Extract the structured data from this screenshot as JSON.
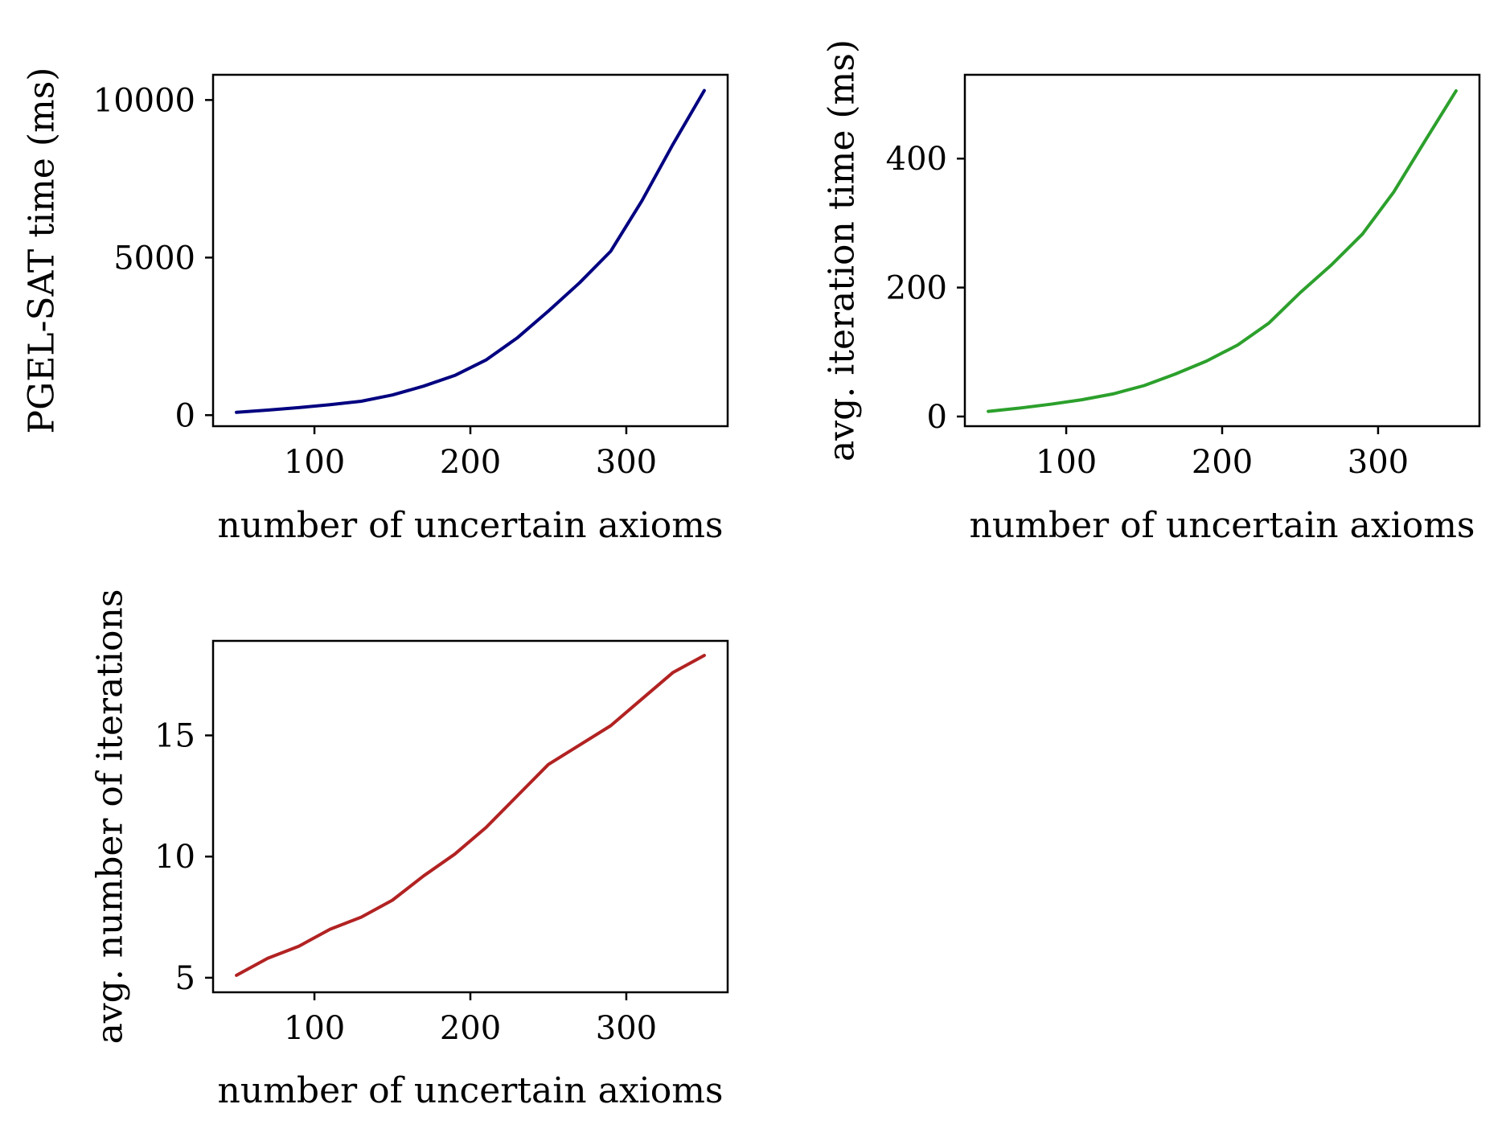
{
  "chart_data": [
    {
      "type": "line",
      "xlabel": "number of uncertain axioms",
      "ylabel": "PGEL-SAT time (ms)",
      "xlim": [
        35,
        365
      ],
      "ylim": [
        -350,
        10800
      ],
      "xticks": [
        100,
        200,
        300
      ],
      "yticks": [
        0,
        5000,
        10000
      ],
      "grid": false,
      "color": "#000080",
      "series": [
        {
          "x": [
            50,
            70,
            90,
            110,
            130,
            150,
            170,
            190,
            210,
            230,
            250,
            270,
            290,
            310,
            330,
            350
          ],
          "y": [
            90,
            160,
            240,
            330,
            440,
            640,
            920,
            1260,
            1750,
            2450,
            3300,
            4200,
            5200,
            6800,
            8600,
            10300
          ]
        }
      ]
    },
    {
      "type": "line",
      "xlabel": "number of uncertain axioms",
      "ylabel": "avg. iteration time (ms)",
      "xlim": [
        35,
        365
      ],
      "ylim": [
        -15,
        530
      ],
      "xticks": [
        100,
        200,
        300
      ],
      "yticks": [
        0,
        200,
        400
      ],
      "grid": false,
      "color": "#2ca02c",
      "series": [
        {
          "x": [
            50,
            70,
            90,
            110,
            130,
            150,
            170,
            190,
            210,
            230,
            250,
            270,
            290,
            310,
            330,
            350
          ],
          "y": [
            8,
            13,
            19,
            26,
            35,
            48,
            66,
            86,
            111,
            145,
            192,
            235,
            283,
            348,
            427,
            505
          ]
        }
      ]
    },
    {
      "type": "line",
      "xlabel": "number of uncertain axioms",
      "ylabel": "avg. number of iterations",
      "xlim": [
        35,
        365
      ],
      "ylim": [
        4.4,
        18.9
      ],
      "xticks": [
        100,
        200,
        300
      ],
      "yticks": [
        5,
        10,
        15
      ],
      "grid": false,
      "color": "#b22222",
      "series": [
        {
          "x": [
            50,
            70,
            90,
            110,
            130,
            150,
            170,
            190,
            210,
            230,
            250,
            270,
            290,
            310,
            330,
            350
          ],
          "y": [
            5.1,
            5.8,
            6.3,
            7.0,
            7.5,
            8.2,
            9.2,
            10.1,
            11.2,
            12.5,
            13.8,
            14.6,
            15.4,
            16.5,
            17.6,
            18.3
          ]
        }
      ]
    }
  ]
}
